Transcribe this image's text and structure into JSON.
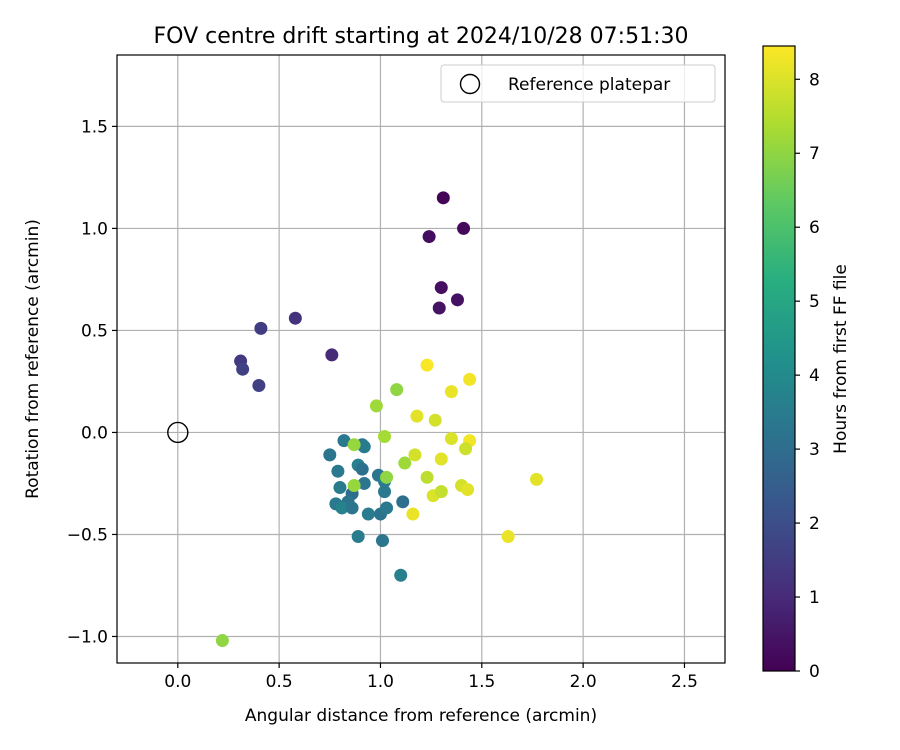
{
  "chart_data": {
    "type": "scatter",
    "title": "FOV centre drift starting at 2024/10/28 07:51:30",
    "xlabel": "Angular distance from reference (arcmin)",
    "ylabel": "Rotation from reference (arcmin)",
    "xlim": [
      -0.3,
      2.7
    ],
    "ylim": [
      -1.13,
      1.85
    ],
    "xticks": [
      "0.0",
      "0.5",
      "1.0",
      "1.5",
      "2.0",
      "2.5"
    ],
    "yticks": [
      "−1.0",
      "−0.5",
      "0.0",
      "0.5",
      "1.0",
      "1.5"
    ],
    "grid": true,
    "legend": {
      "placement": "top-right",
      "entries": [
        "Reference platepar"
      ]
    },
    "reference_point": {
      "x": 0.0,
      "y": 0.0
    },
    "colorbar": {
      "label": "Hours from first FF file",
      "colormap": "viridis",
      "range": [
        0,
        8.45
      ],
      "ticks": [
        "0",
        "1",
        "2",
        "3",
        "4",
        "5",
        "6",
        "7",
        "8"
      ]
    },
    "points": [
      {
        "x": 1.31,
        "y": 1.15,
        "h": 0.1
      },
      {
        "x": 1.41,
        "y": 1.0,
        "h": 0.2
      },
      {
        "x": 1.24,
        "y": 0.96,
        "h": 0.3
      },
      {
        "x": 1.3,
        "y": 0.71,
        "h": 0.35
      },
      {
        "x": 1.38,
        "y": 0.65,
        "h": 0.4
      },
      {
        "x": 1.29,
        "y": 0.61,
        "h": 0.45
      },
      {
        "x": 0.76,
        "y": 0.38,
        "h": 1.0
      },
      {
        "x": 0.58,
        "y": 0.56,
        "h": 1.2
      },
      {
        "x": 0.41,
        "y": 0.51,
        "h": 1.5
      },
      {
        "x": 0.31,
        "y": 0.35,
        "h": 1.4
      },
      {
        "x": 0.32,
        "y": 0.31,
        "h": 1.6
      },
      {
        "x": 0.4,
        "y": 0.23,
        "h": 1.6
      },
      {
        "x": 0.75,
        "y": -0.11,
        "h": 3.3
      },
      {
        "x": 0.82,
        "y": -0.04,
        "h": 3.4
      },
      {
        "x": 0.91,
        "y": -0.06,
        "h": 3.2
      },
      {
        "x": 0.92,
        "y": -0.07,
        "h": 3.5
      },
      {
        "x": 0.79,
        "y": -0.19,
        "h": 3.4
      },
      {
        "x": 0.89,
        "y": -0.16,
        "h": 3.6
      },
      {
        "x": 0.91,
        "y": -0.18,
        "h": 3.1
      },
      {
        "x": 0.99,
        "y": -0.21,
        "h": 3.3
      },
      {
        "x": 1.02,
        "y": -0.24,
        "h": 3.5
      },
      {
        "x": 0.8,
        "y": -0.27,
        "h": 3.5
      },
      {
        "x": 0.86,
        "y": -0.3,
        "h": 3.0
      },
      {
        "x": 0.92,
        "y": -0.25,
        "h": 3.3
      },
      {
        "x": 1.02,
        "y": -0.29,
        "h": 3.4
      },
      {
        "x": 0.78,
        "y": -0.35,
        "h": 3.4
      },
      {
        "x": 0.84,
        "y": -0.34,
        "h": 3.2
      },
      {
        "x": 0.81,
        "y": -0.37,
        "h": 3.7
      },
      {
        "x": 0.86,
        "y": -0.37,
        "h": 3.3
      },
      {
        "x": 0.94,
        "y": -0.4,
        "h": 3.5
      },
      {
        "x": 1.0,
        "y": -0.4,
        "h": 3.2
      },
      {
        "x": 1.03,
        "y": -0.37,
        "h": 3.4
      },
      {
        "x": 1.11,
        "y": -0.34,
        "h": 3.1
      },
      {
        "x": 0.89,
        "y": -0.51,
        "h": 3.5
      },
      {
        "x": 1.01,
        "y": -0.53,
        "h": 3.3
      },
      {
        "x": 1.1,
        "y": -0.7,
        "h": 3.6
      },
      {
        "x": 0.98,
        "y": 0.13,
        "h": 7.2
      },
      {
        "x": 1.08,
        "y": 0.21,
        "h": 7.0
      },
      {
        "x": 0.87,
        "y": -0.06,
        "h": 7.1
      },
      {
        "x": 1.02,
        "y": -0.02,
        "h": 7.3
      },
      {
        "x": 1.12,
        "y": -0.15,
        "h": 7.2
      },
      {
        "x": 1.03,
        "y": -0.22,
        "h": 7.0
      },
      {
        "x": 0.87,
        "y": -0.26,
        "h": 7.1
      },
      {
        "x": 0.22,
        "y": -1.02,
        "h": 7.0
      },
      {
        "x": 1.23,
        "y": 0.33,
        "h": 8.4
      },
      {
        "x": 1.44,
        "y": 0.26,
        "h": 8.3
      },
      {
        "x": 1.35,
        "y": 0.2,
        "h": 8.2
      },
      {
        "x": 1.18,
        "y": 0.08,
        "h": 8.1
      },
      {
        "x": 1.27,
        "y": 0.06,
        "h": 7.9
      },
      {
        "x": 1.35,
        "y": -0.03,
        "h": 8.0
      },
      {
        "x": 1.44,
        "y": -0.04,
        "h": 8.3
      },
      {
        "x": 1.42,
        "y": -0.08,
        "h": 7.8
      },
      {
        "x": 1.17,
        "y": -0.11,
        "h": 7.9
      },
      {
        "x": 1.3,
        "y": -0.13,
        "h": 8.1
      },
      {
        "x": 1.23,
        "y": -0.22,
        "h": 7.6
      },
      {
        "x": 1.4,
        "y": -0.26,
        "h": 7.9
      },
      {
        "x": 1.43,
        "y": -0.28,
        "h": 8.1
      },
      {
        "x": 1.26,
        "y": -0.31,
        "h": 8.0
      },
      {
        "x": 1.3,
        "y": -0.29,
        "h": 7.7
      },
      {
        "x": 1.16,
        "y": -0.4,
        "h": 8.2
      },
      {
        "x": 1.77,
        "y": -0.23,
        "h": 8.1
      },
      {
        "x": 1.63,
        "y": -0.51,
        "h": 8.2
      }
    ]
  }
}
